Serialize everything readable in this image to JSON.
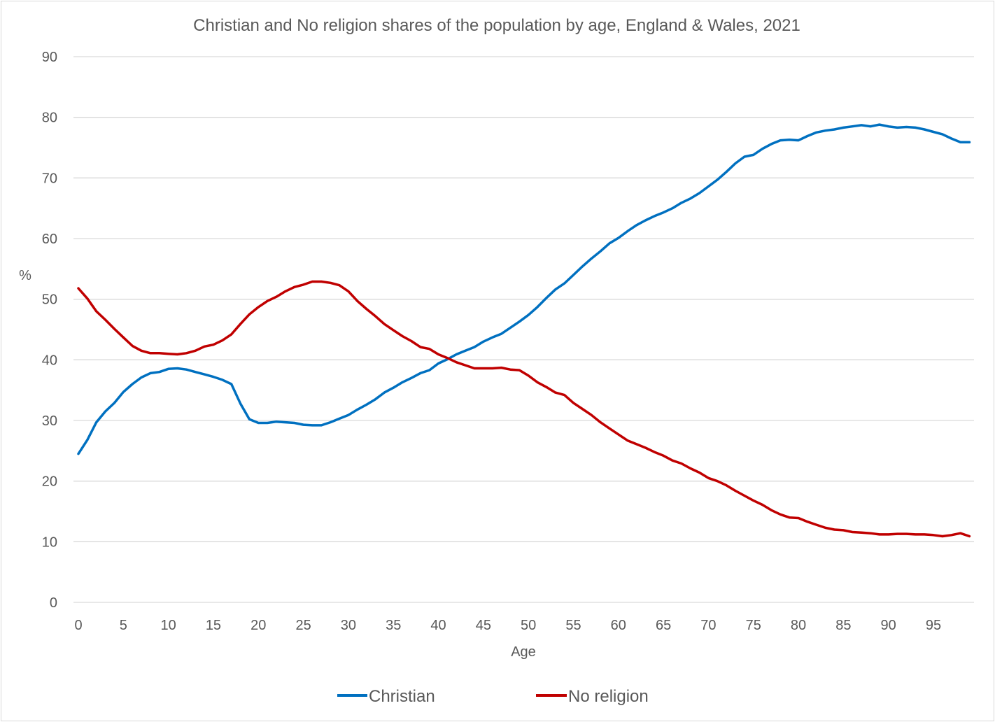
{
  "chart_data": {
    "type": "line",
    "title": "Christian and No religion shares of the population by age, England & Wales, 2021",
    "xlabel": "Age",
    "ylabel": "%",
    "xlim": [
      0,
      99
    ],
    "ylim": [
      0,
      90
    ],
    "x_ticks": [
      0,
      5,
      10,
      15,
      20,
      25,
      30,
      35,
      40,
      45,
      50,
      55,
      60,
      65,
      70,
      75,
      80,
      85,
      90,
      95
    ],
    "y_ticks": [
      0,
      10,
      20,
      30,
      40,
      50,
      60,
      70,
      80,
      90
    ],
    "grid": "horizontal",
    "legend": "bottom",
    "series": [
      {
        "name": "Christian",
        "color": "#0070c0",
        "values": [
          24.5,
          26.8,
          29.7,
          31.5,
          32.9,
          34.7,
          36.0,
          37.1,
          37.8,
          38.0,
          38.5,
          38.6,
          38.4,
          38.0,
          37.6,
          37.2,
          36.7,
          36.0,
          32.8,
          30.2,
          29.6,
          29.6,
          29.8,
          29.7,
          29.6,
          29.3,
          29.2,
          29.2,
          29.7,
          30.3,
          30.9,
          31.8,
          32.6,
          33.5,
          34.6,
          35.4,
          36.3,
          37.0,
          37.8,
          38.3,
          39.4,
          40.1,
          40.9,
          41.5,
          42.1,
          43.0,
          43.7,
          44.3,
          45.3,
          46.3,
          47.4,
          48.7,
          50.2,
          51.6,
          52.6,
          54.0,
          55.4,
          56.7,
          57.9,
          59.2,
          60.1,
          61.2,
          62.2,
          63.0,
          63.7,
          64.3,
          65.0,
          65.9,
          66.6,
          67.5,
          68.6,
          69.7,
          71.0,
          72.4,
          73.5,
          73.8,
          74.8,
          75.6,
          76.2,
          76.3,
          76.2,
          76.9,
          77.5,
          77.8,
          78.0,
          78.3,
          78.5,
          78.7,
          78.5,
          78.8,
          78.5,
          78.3,
          78.4,
          78.3,
          78.0,
          77.6,
          77.2,
          76.5,
          75.9,
          75.9
        ]
      },
      {
        "name": "No religion",
        "color": "#c00000",
        "values": [
          51.8,
          50.1,
          48.0,
          46.6,
          45.1,
          43.7,
          42.3,
          41.5,
          41.1,
          41.1,
          41.0,
          40.9,
          41.1,
          41.5,
          42.2,
          42.5,
          43.2,
          44.2,
          45.9,
          47.5,
          48.7,
          49.7,
          50.4,
          51.3,
          52.0,
          52.4,
          52.9,
          52.9,
          52.7,
          52.3,
          51.3,
          49.7,
          48.4,
          47.2,
          45.9,
          44.9,
          43.9,
          43.1,
          42.1,
          41.8,
          40.9,
          40.3,
          39.6,
          39.1,
          38.6,
          38.6,
          38.6,
          38.7,
          38.4,
          38.3,
          37.4,
          36.3,
          35.5,
          34.6,
          34.2,
          32.9,
          31.9,
          30.9,
          29.7,
          28.7,
          27.7,
          26.7,
          26.1,
          25.5,
          24.8,
          24.2,
          23.4,
          22.9,
          22.1,
          21.4,
          20.5,
          20.0,
          19.3,
          18.4,
          17.6,
          16.8,
          16.1,
          15.2,
          14.5,
          14.0,
          13.9,
          13.3,
          12.8,
          12.3,
          12.0,
          11.9,
          11.6,
          11.5,
          11.4,
          11.2,
          11.2,
          11.3,
          11.3,
          11.2,
          11.2,
          11.1,
          10.9,
          11.1,
          11.4,
          10.9
        ]
      }
    ]
  }
}
